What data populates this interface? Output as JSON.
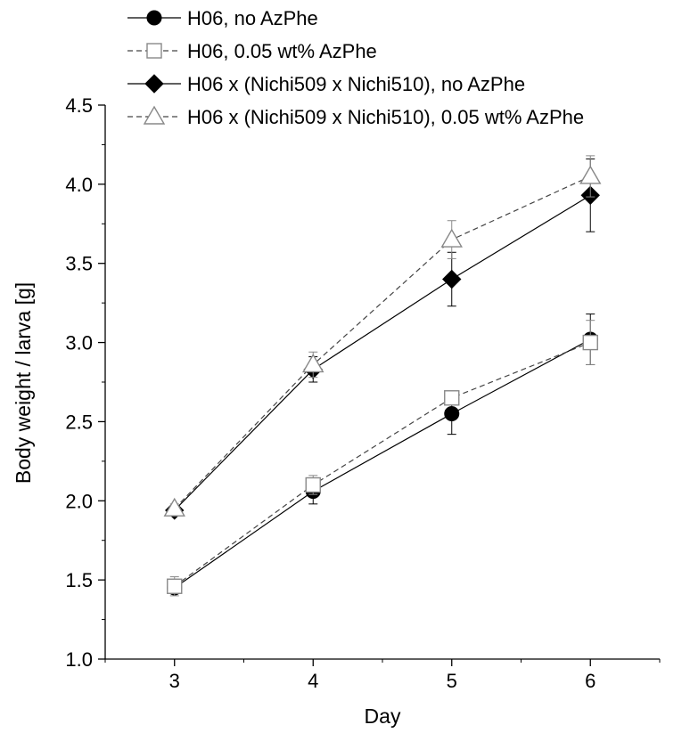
{
  "chart_data": {
    "type": "line",
    "title": "",
    "xlabel": "Day",
    "ylabel": "Body weight / larva [g]",
    "x": [
      3,
      4,
      5,
      6
    ],
    "xticks": [
      "3",
      "4",
      "5",
      "6"
    ],
    "xlim": [
      2.5,
      6.5
    ],
    "ylim": [
      1.0,
      4.5
    ],
    "yticks": [
      "1.0",
      "1.5",
      "2.0",
      "2.5",
      "3.0",
      "3.5",
      "4.0",
      "4.5"
    ],
    "grid": false,
    "legend_position": "top-left",
    "series": [
      {
        "name": "H06, no AzPhe",
        "marker": "filled-circle",
        "line": "solid",
        "values": [
          1.45,
          2.06,
          2.55,
          3.02
        ],
        "errors": [
          0.03,
          0.08,
          0.13,
          0.16
        ]
      },
      {
        "name": "H06, 0.05 wt% AzPhe",
        "marker": "open-square",
        "line": "dashed",
        "values": [
          1.46,
          2.1,
          2.65,
          3.0
        ],
        "errors": [
          0.06,
          0.06,
          0.04,
          0.14
        ]
      },
      {
        "name": "H06 x (Nichi509 x Nichi510), no AzPhe",
        "marker": "filled-diamond",
        "line": "solid",
        "values": [
          1.94,
          2.83,
          3.4,
          3.93
        ],
        "errors": [
          0.03,
          0.08,
          0.17,
          0.23
        ]
      },
      {
        "name": "H06 x (Nichi509 x Nichi510), 0.05 wt% AzPhe",
        "marker": "open-triangle",
        "line": "dashed",
        "values": [
          1.95,
          2.86,
          3.65,
          4.05
        ],
        "errors": [
          0.03,
          0.08,
          0.12,
          0.13
        ]
      }
    ]
  },
  "colors": {
    "axis": "#000000",
    "filled": "#000000",
    "open_stroke": "#888888",
    "open_fill": "#ffffff"
  }
}
